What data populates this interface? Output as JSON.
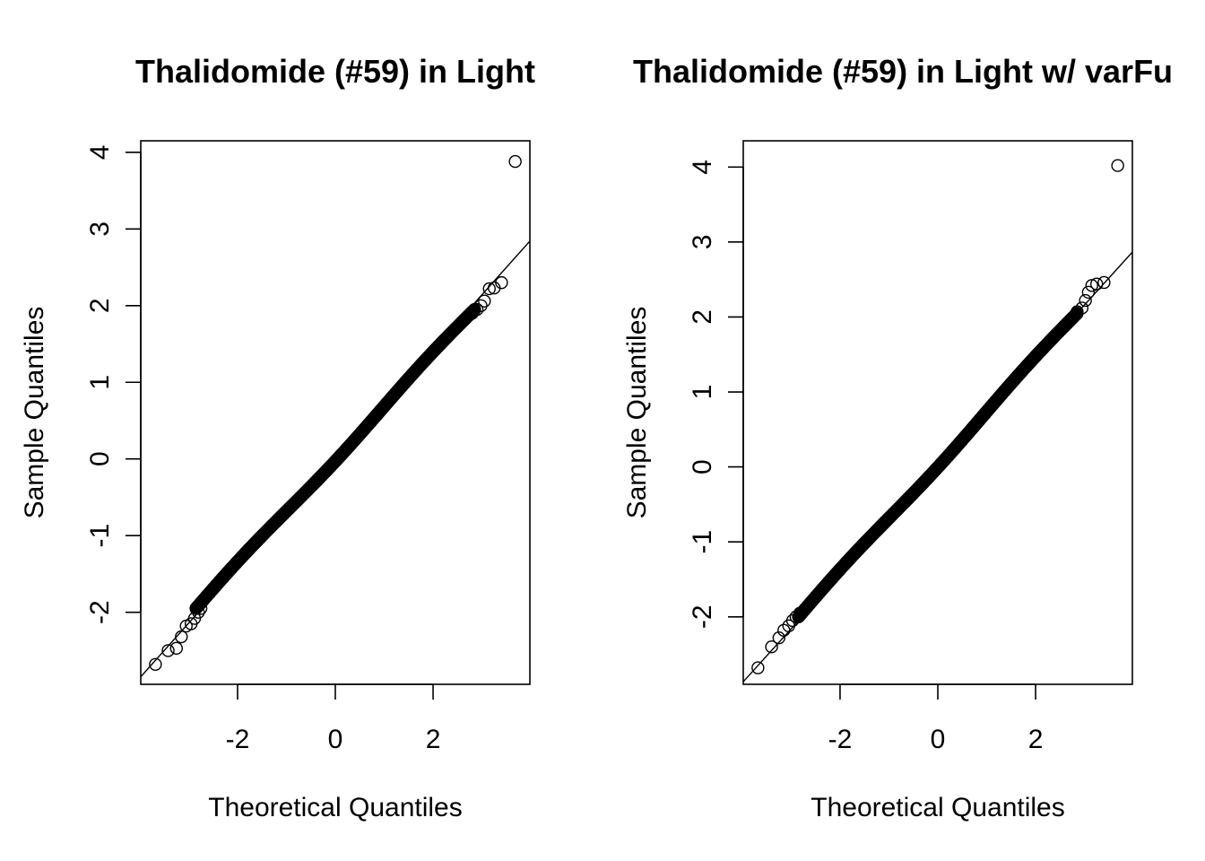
{
  "chart_data": [
    {
      "type": "scatter",
      "subtype": "qq-plot",
      "title": "Thalidomide (#59) in Light",
      "xlabel": "Theoretical Quantiles",
      "ylabel": "Sample Quantiles",
      "xlim": [
        -3.98,
        3.98
      ],
      "ylim": [
        -2.94,
        4.15
      ],
      "xticks": [
        -2,
        0,
        2
      ],
      "xtick_labels": [
        "-2",
        "0",
        "2"
      ],
      "yticks": [
        -2,
        -1,
        0,
        1,
        2,
        3,
        4
      ],
      "ytick_labels": [
        "-2",
        "-1",
        "0",
        "1",
        "2",
        "3",
        "4"
      ],
      "grid": false,
      "reference_line": {
        "slope": 0.714,
        "intercept": 0.0
      },
      "bulk": {
        "from": [
          -2.85,
          -1.95
        ],
        "to": [
          2.85,
          1.95
        ],
        "n": 900
      },
      "outliers": [
        {
          "x": -3.68,
          "y": -2.68
        },
        {
          "x": -3.42,
          "y": -2.5
        },
        {
          "x": -3.25,
          "y": -2.47
        },
        {
          "x": -3.15,
          "y": -2.32
        },
        {
          "x": -3.05,
          "y": -2.18
        },
        {
          "x": -2.95,
          "y": -2.15
        },
        {
          "x": -2.88,
          "y": -2.08
        },
        {
          "x": -2.8,
          "y": -2.0
        },
        {
          "x": -2.75,
          "y": -1.95
        },
        {
          "x": 2.8,
          "y": 1.9
        },
        {
          "x": 2.9,
          "y": 1.95
        },
        {
          "x": 2.98,
          "y": 2.0
        },
        {
          "x": 3.05,
          "y": 2.06
        },
        {
          "x": 3.15,
          "y": 2.22
        },
        {
          "x": 3.25,
          "y": 2.23
        },
        {
          "x": 3.4,
          "y": 2.3
        },
        {
          "x": 3.68,
          "y": 3.88
        }
      ]
    },
    {
      "type": "scatter",
      "subtype": "qq-plot",
      "title": "Thalidomide (#59) in Light w/ varFu",
      "xlabel": "Theoretical Quantiles",
      "ylabel": "Sample Quantiles",
      "xlim": [
        -3.98,
        3.98
      ],
      "ylim": [
        -2.9,
        4.35
      ],
      "xticks": [
        -2,
        0,
        2
      ],
      "xtick_labels": [
        "-2",
        "0",
        "2"
      ],
      "yticks": [
        -2,
        -1,
        0,
        1,
        2,
        3,
        4
      ],
      "ytick_labels": [
        "-2",
        "-1",
        "0",
        "1",
        "2",
        "3",
        "4"
      ],
      "grid": false,
      "reference_line": {
        "slope": 0.72,
        "intercept": 0.0
      },
      "bulk": {
        "from": [
          -2.85,
          -2.0
        ],
        "to": [
          2.85,
          2.05
        ],
        "n": 900
      },
      "outliers": [
        {
          "x": -3.68,
          "y": -2.68
        },
        {
          "x": -3.4,
          "y": -2.4
        },
        {
          "x": -3.25,
          "y": -2.28
        },
        {
          "x": -3.15,
          "y": -2.18
        },
        {
          "x": -3.05,
          "y": -2.12
        },
        {
          "x": -2.97,
          "y": -2.05
        },
        {
          "x": -2.9,
          "y": -2.0
        },
        {
          "x": -2.82,
          "y": -1.95
        },
        {
          "x": 2.85,
          "y": 2.07
        },
        {
          "x": 2.95,
          "y": 2.12
        },
        {
          "x": 3.02,
          "y": 2.22
        },
        {
          "x": 3.08,
          "y": 2.33
        },
        {
          "x": 3.15,
          "y": 2.42
        },
        {
          "x": 3.25,
          "y": 2.44
        },
        {
          "x": 3.4,
          "y": 2.46
        },
        {
          "x": 3.68,
          "y": 4.02
        }
      ]
    }
  ]
}
